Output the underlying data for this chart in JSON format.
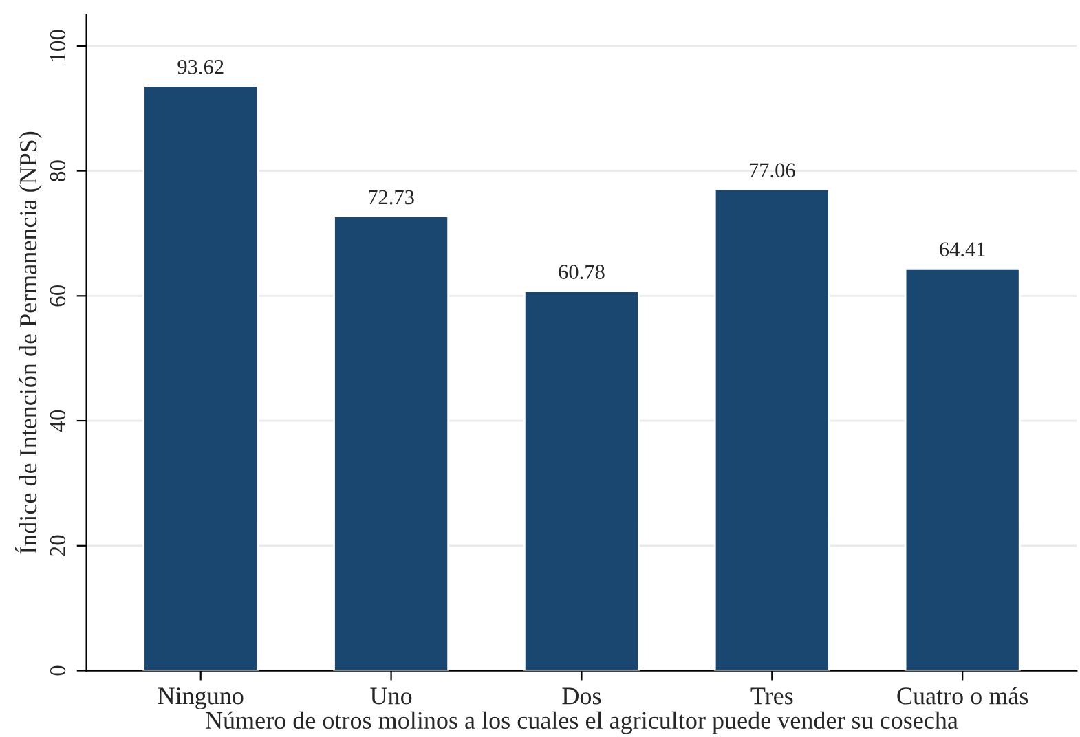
{
  "chart_data": {
    "type": "bar",
    "xlabel": "Número de otros molinos a los cuales el agricultor puede vender su cosecha",
    "ylabel": "Índice de Intención de Permanencia (NPS)",
    "categories": [
      "Ninguno",
      "Uno",
      "Dos",
      "Tres",
      "Cuatro o más"
    ],
    "values": [
      93.62,
      72.73,
      60.78,
      77.06,
      64.41
    ],
    "color": "#1a476f",
    "ylim": [
      0,
      105
    ],
    "yticks": [
      0,
      20,
      40,
      60,
      80,
      100
    ],
    "grid": "y",
    "data_labels": true
  }
}
